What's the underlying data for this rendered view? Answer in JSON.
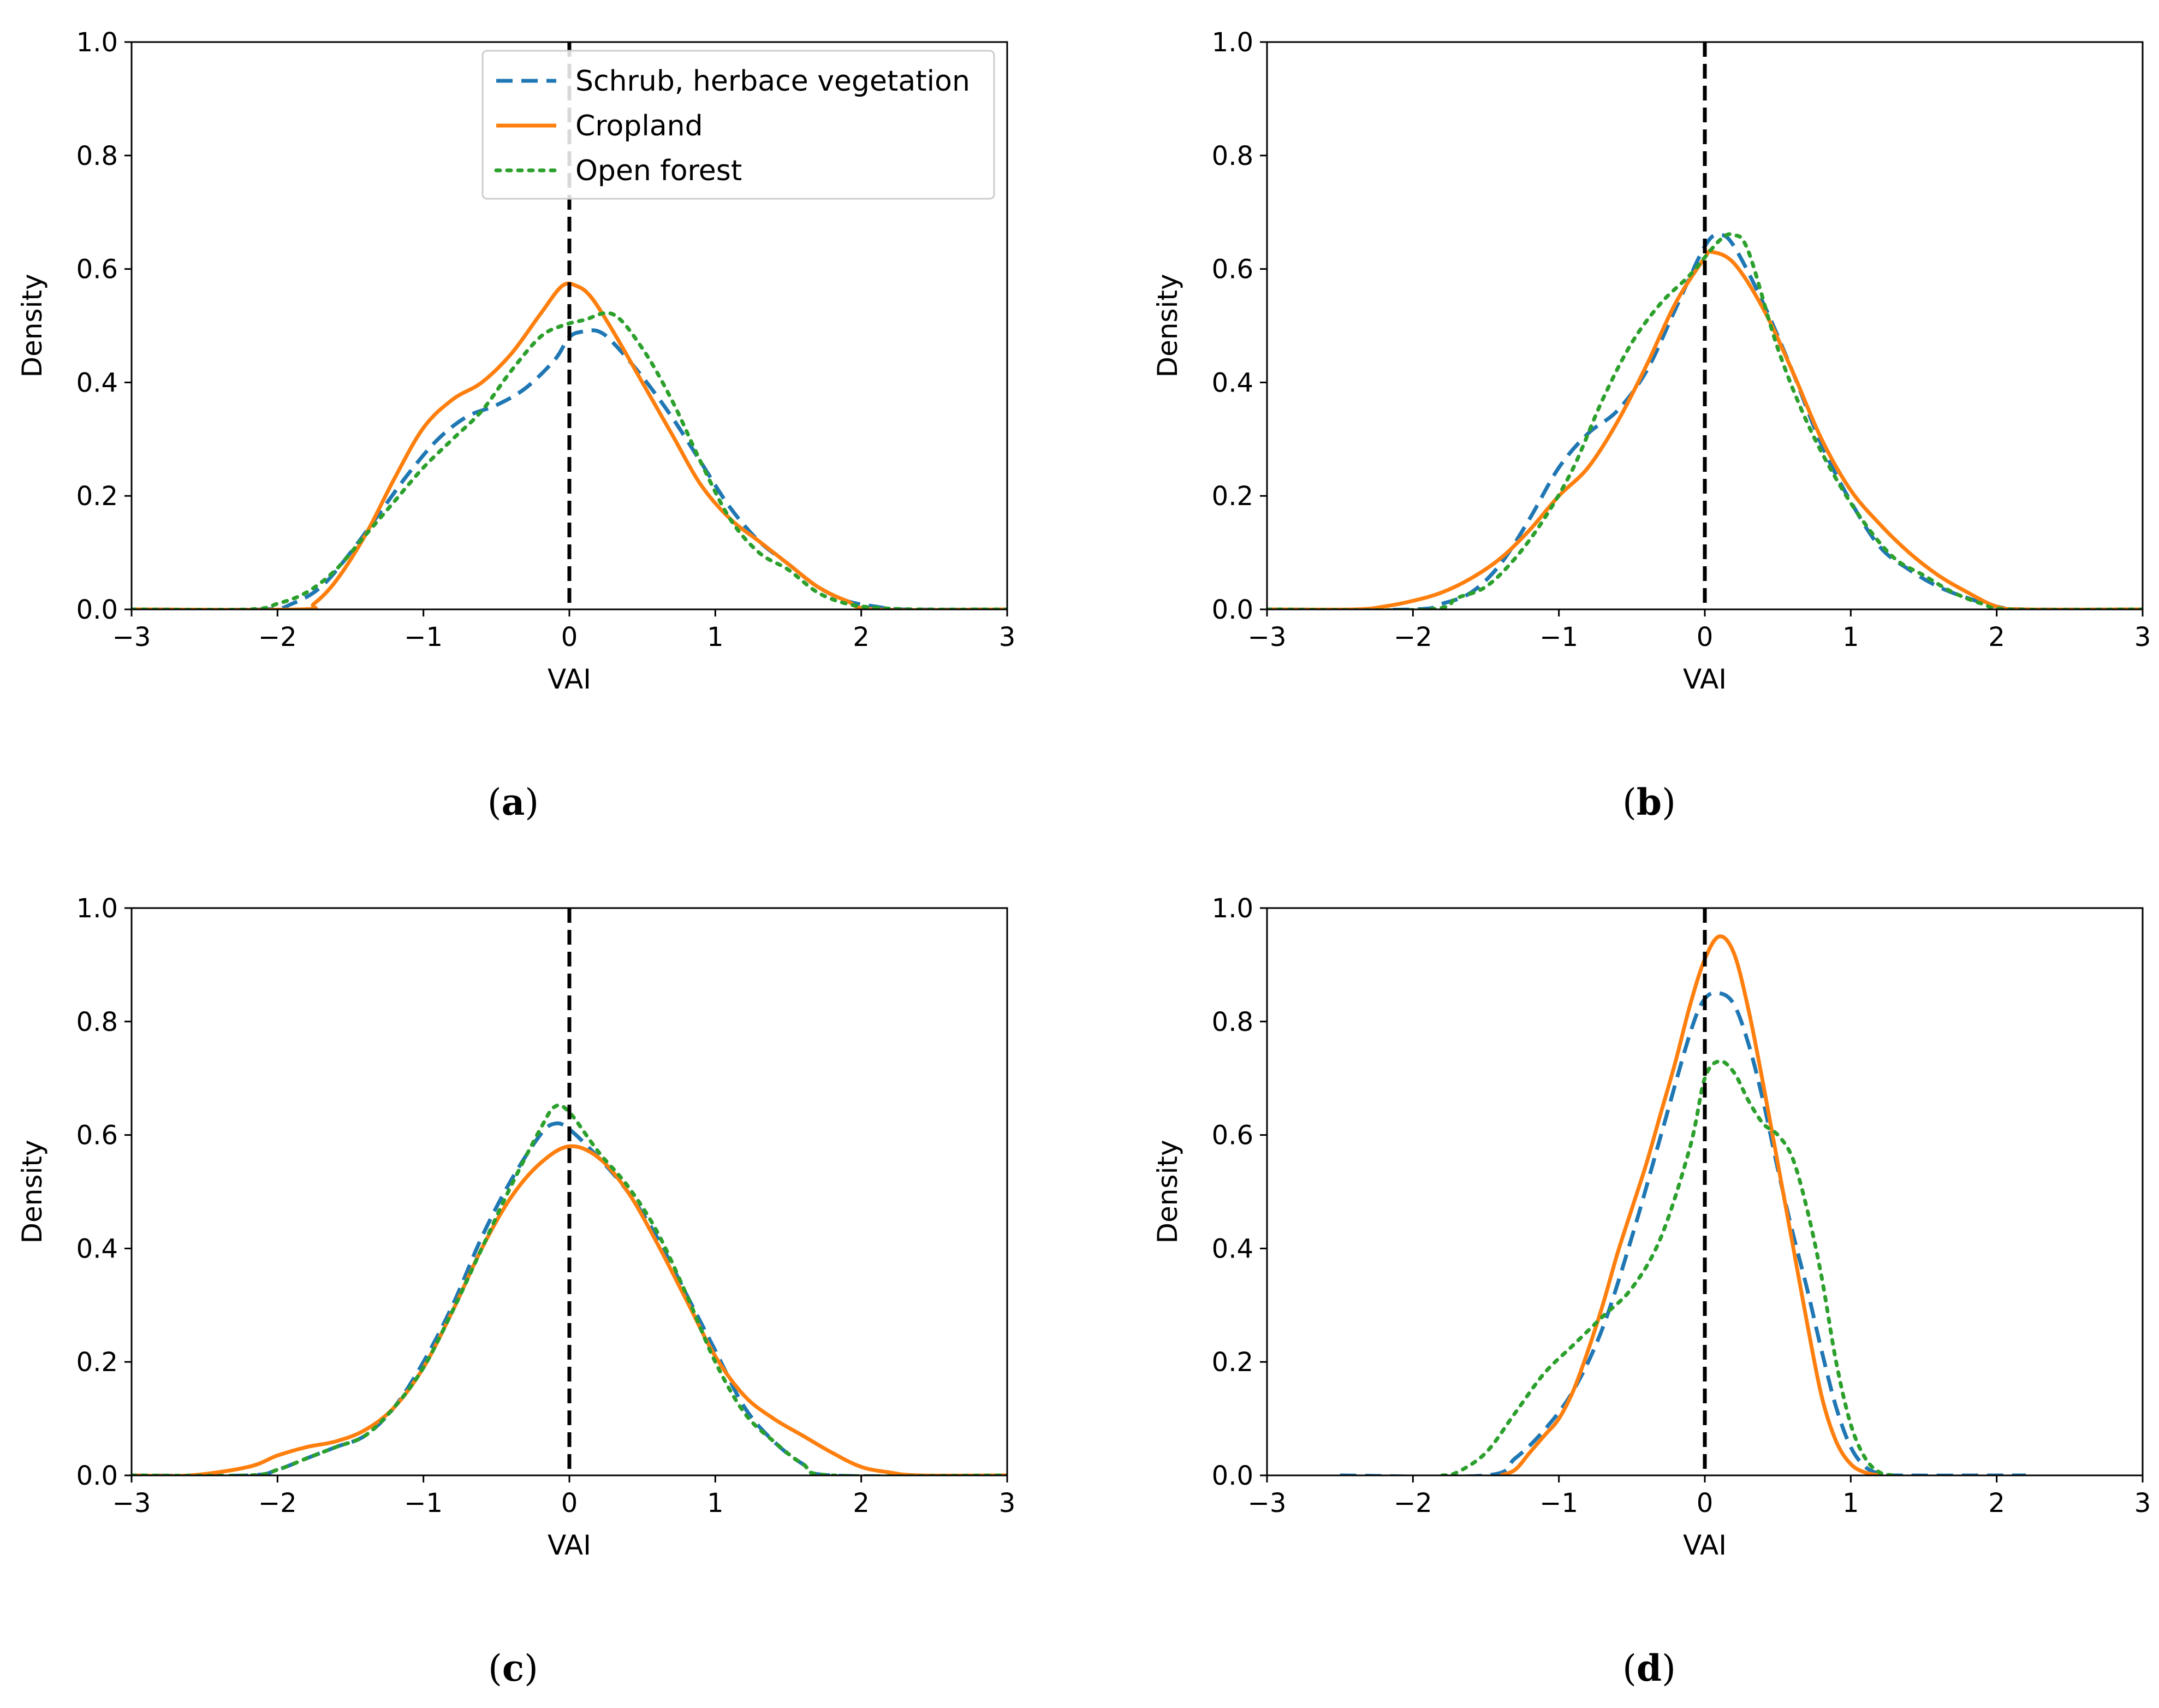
{
  "figure": {
    "captions": [
      "(a)",
      "(b)",
      "(c)",
      "(d)"
    ],
    "caption_letters": [
      "a",
      "b",
      "c",
      "d"
    ]
  },
  "legend": {
    "position": "top-right",
    "entries": [
      {
        "label": "Schrub, herbace vegetation",
        "color": "#1f77b4",
        "dash": "dashed"
      },
      {
        "label": "Cropland",
        "color": "#ff7f0e",
        "dash": "solid"
      },
      {
        "label": "Open forest",
        "color": "#2ca02c",
        "dash": "dotted"
      }
    ]
  },
  "chart_data": [
    {
      "id": "a",
      "type": "line",
      "title": "",
      "xlabel": "VAI",
      "ylabel": "Density",
      "xlim": [
        -3,
        3
      ],
      "ylim": [
        0,
        1
      ],
      "xticks": [
        -3,
        -2,
        -1,
        0,
        1,
        2,
        3
      ],
      "xtick_labels": [
        "−3",
        "−2",
        "−1",
        "0",
        "1",
        "2",
        "3"
      ],
      "yticks": [
        0,
        0.2,
        0.4,
        0.6,
        0.8,
        1
      ],
      "ytick_labels": [
        "0.0",
        "0.2",
        "0.4",
        "0.6",
        "0.8",
        "1.0"
      ],
      "vline_x": 0,
      "has_legend": true,
      "grid": false,
      "series": [
        {
          "name": "Schrub, herbace vegetation",
          "x": [
            -3,
            -2.1,
            -1.9,
            -1.7,
            -1.5,
            -1.3,
            -1.1,
            -0.9,
            -0.7,
            -0.5,
            -0.3,
            -0.1,
            0,
            0.1,
            0.2,
            0.3,
            0.5,
            0.7,
            0.9,
            1.1,
            1.3,
            1.5,
            1.7,
            1.9,
            2.1,
            2.3,
            3
          ],
          "y": [
            0,
            0,
            0.01,
            0.04,
            0.1,
            0.17,
            0.24,
            0.3,
            0.34,
            0.36,
            0.39,
            0.44,
            0.48,
            0.49,
            0.49,
            0.47,
            0.41,
            0.34,
            0.26,
            0.18,
            0.12,
            0.08,
            0.04,
            0.015,
            0.005,
            0,
            0
          ]
        },
        {
          "name": "Cropland",
          "x": [
            -3,
            -1.85,
            -1.75,
            -1.6,
            -1.4,
            -1.2,
            -1.0,
            -0.8,
            -0.6,
            -0.4,
            -0.2,
            -0.05,
            0.05,
            0.15,
            0.3,
            0.5,
            0.7,
            0.9,
            1.1,
            1.3,
            1.5,
            1.7,
            1.9,
            2.1,
            3
          ],
          "y": [
            0,
            0,
            0.01,
            0.05,
            0.13,
            0.23,
            0.32,
            0.37,
            0.4,
            0.45,
            0.52,
            0.57,
            0.57,
            0.55,
            0.49,
            0.4,
            0.31,
            0.22,
            0.16,
            0.12,
            0.08,
            0.04,
            0.015,
            0,
            0
          ]
        },
        {
          "name": "Open forest",
          "x": [
            -3,
            -2.2,
            -2.0,
            -1.8,
            -1.6,
            -1.4,
            -1.2,
            -1.0,
            -0.8,
            -0.6,
            -0.4,
            -0.2,
            -0.05,
            0.1,
            0.3,
            0.5,
            0.7,
            0.9,
            1.1,
            1.3,
            1.5,
            1.7,
            1.9,
            2.1,
            2.4,
            3
          ],
          "y": [
            0,
            0,
            0.01,
            0.03,
            0.07,
            0.13,
            0.19,
            0.25,
            0.3,
            0.35,
            0.42,
            0.48,
            0.5,
            0.51,
            0.52,
            0.46,
            0.37,
            0.26,
            0.16,
            0.1,
            0.07,
            0.03,
            0.01,
            0.003,
            0,
            0
          ]
        }
      ]
    },
    {
      "id": "b",
      "type": "line",
      "title": "",
      "xlabel": "VAI",
      "ylabel": "Density",
      "xlim": [
        -3,
        3
      ],
      "ylim": [
        0,
        1
      ],
      "xticks": [
        -3,
        -2,
        -1,
        0,
        1,
        2,
        3
      ],
      "xtick_labels": [
        "−3",
        "−2",
        "−1",
        "0",
        "1",
        "2",
        "3"
      ],
      "yticks": [
        0,
        0.2,
        0.4,
        0.6,
        0.8,
        1
      ],
      "ytick_labels": [
        "0.0",
        "0.2",
        "0.4",
        "0.6",
        "0.8",
        "1.0"
      ],
      "vline_x": 0,
      "has_legend": false,
      "grid": false,
      "series": [
        {
          "name": "Schrub, herbace vegetation",
          "x": [
            -3,
            -2.0,
            -1.8,
            -1.6,
            -1.4,
            -1.2,
            -1.0,
            -0.8,
            -0.6,
            -0.4,
            -0.2,
            0,
            0.1,
            0.2,
            0.4,
            0.6,
            0.8,
            1.0,
            1.2,
            1.4,
            1.6,
            1.8,
            2.0,
            2.2,
            3
          ],
          "y": [
            0,
            0,
            0.01,
            0.03,
            0.08,
            0.16,
            0.25,
            0.31,
            0.35,
            0.42,
            0.53,
            0.64,
            0.66,
            0.64,
            0.54,
            0.42,
            0.29,
            0.19,
            0.11,
            0.07,
            0.04,
            0.02,
            0.005,
            0,
            0
          ]
        },
        {
          "name": "Cropland",
          "x": [
            -3,
            -2.4,
            -2.2,
            -2.0,
            -1.8,
            -1.6,
            -1.4,
            -1.2,
            -1.0,
            -0.8,
            -0.6,
            -0.4,
            -0.2,
            0,
            0.05,
            0.2,
            0.4,
            0.6,
            0.8,
            1.0,
            1.2,
            1.4,
            1.6,
            1.8,
            2.0,
            2.2,
            3
          ],
          "y": [
            0,
            0,
            0.005,
            0.015,
            0.03,
            0.055,
            0.09,
            0.14,
            0.2,
            0.25,
            0.33,
            0.43,
            0.54,
            0.62,
            0.63,
            0.61,
            0.53,
            0.42,
            0.3,
            0.21,
            0.15,
            0.1,
            0.06,
            0.03,
            0.005,
            0,
            0
          ]
        },
        {
          "name": "Open forest",
          "x": [
            -3,
            -1.9,
            -1.7,
            -1.5,
            -1.3,
            -1.1,
            -0.9,
            -0.7,
            -0.5,
            -0.3,
            -0.1,
            0.1,
            0.2,
            0.3,
            0.5,
            0.7,
            0.9,
            1.1,
            1.3,
            1.5,
            1.7,
            1.9,
            2.1,
            3
          ],
          "y": [
            0,
            0,
            0.02,
            0.04,
            0.09,
            0.16,
            0.25,
            0.37,
            0.47,
            0.54,
            0.59,
            0.65,
            0.66,
            0.63,
            0.46,
            0.33,
            0.23,
            0.15,
            0.09,
            0.06,
            0.03,
            0.01,
            0,
            0
          ]
        }
      ]
    },
    {
      "id": "c",
      "type": "line",
      "title": "",
      "xlabel": "VAI",
      "ylabel": "Density",
      "xlim": [
        -3,
        3
      ],
      "ylim": [
        0,
        1
      ],
      "xticks": [
        -3,
        -2,
        -1,
        0,
        1,
        2,
        3
      ],
      "xtick_labels": [
        "−3",
        "−2",
        "−1",
        "0",
        "1",
        "2",
        "3"
      ],
      "yticks": [
        0,
        0.2,
        0.4,
        0.6,
        0.8,
        1
      ],
      "ytick_labels": [
        "0.0",
        "0.2",
        "0.4",
        "0.6",
        "0.8",
        "1.0"
      ],
      "vline_x": 0,
      "has_legend": false,
      "grid": false,
      "series": [
        {
          "name": "Schrub, herbace vegetation",
          "x": [
            -3,
            -2.2,
            -2.0,
            -1.8,
            -1.6,
            -1.4,
            -1.2,
            -1.0,
            -0.8,
            -0.6,
            -0.4,
            -0.2,
            -0.1,
            0,
            0.2,
            0.4,
            0.6,
            0.8,
            1.0,
            1.2,
            1.4,
            1.6,
            1.8,
            3
          ],
          "y": [
            0,
            0,
            0.01,
            0.03,
            0.05,
            0.07,
            0.12,
            0.2,
            0.3,
            0.42,
            0.52,
            0.6,
            0.62,
            0.61,
            0.56,
            0.5,
            0.42,
            0.32,
            0.22,
            0.12,
            0.06,
            0.02,
            0,
            0
          ]
        },
        {
          "name": "Cropland",
          "x": [
            -3,
            -2.6,
            -2.2,
            -2.0,
            -1.8,
            -1.6,
            -1.4,
            -1.2,
            -1.0,
            -0.8,
            -0.6,
            -0.4,
            -0.2,
            0,
            0.2,
            0.4,
            0.6,
            0.8,
            1.0,
            1.2,
            1.4,
            1.6,
            1.8,
            2.0,
            2.2,
            2.4,
            3
          ],
          "y": [
            0,
            0,
            0.015,
            0.035,
            0.05,
            0.06,
            0.08,
            0.12,
            0.19,
            0.29,
            0.4,
            0.49,
            0.55,
            0.58,
            0.56,
            0.5,
            0.41,
            0.31,
            0.21,
            0.14,
            0.1,
            0.07,
            0.04,
            0.015,
            0.005,
            0,
            0
          ]
        },
        {
          "name": "Open forest",
          "x": [
            -3,
            -2.2,
            -2.0,
            -1.8,
            -1.6,
            -1.4,
            -1.2,
            -1.0,
            -0.8,
            -0.6,
            -0.4,
            -0.2,
            -0.1,
            0,
            0.2,
            0.4,
            0.6,
            0.8,
            1.0,
            1.2,
            1.4,
            1.6,
            1.8,
            3
          ],
          "y": [
            0,
            0,
            0.01,
            0.03,
            0.05,
            0.07,
            0.12,
            0.19,
            0.29,
            0.4,
            0.51,
            0.61,
            0.65,
            0.64,
            0.57,
            0.51,
            0.43,
            0.32,
            0.2,
            0.11,
            0.06,
            0.02,
            0,
            0
          ]
        }
      ]
    },
    {
      "id": "d",
      "type": "line",
      "title": "",
      "xlabel": "VAI",
      "ylabel": "Density",
      "xlim": [
        -3,
        3
      ],
      "ylim": [
        0,
        1
      ],
      "xticks": [
        -3,
        -2,
        -1,
        0,
        1,
        2,
        3
      ],
      "xtick_labels": [
        "−3",
        "−2",
        "−1",
        "0",
        "1",
        "2",
        "3"
      ],
      "yticks": [
        0,
        0.2,
        0.4,
        0.6,
        0.8,
        1
      ],
      "ytick_labels": [
        "0.0",
        "0.2",
        "0.4",
        "0.6",
        "0.8",
        "1.0"
      ],
      "vline_x": 0,
      "has_legend": false,
      "grid": false,
      "series": [
        {
          "name": "Schrub, herbace vegetation",
          "x": [
            -2.5,
            -1.5,
            -1.3,
            -1.1,
            -0.9,
            -0.7,
            -0.5,
            -0.3,
            -0.1,
            0,
            0.1,
            0.2,
            0.3,
            0.4,
            0.5,
            0.6,
            0.7,
            0.8,
            0.9,
            1.0,
            1.1,
            1.2,
            1.3,
            2.2
          ],
          "y": [
            0,
            0,
            0.03,
            0.08,
            0.15,
            0.26,
            0.42,
            0.6,
            0.78,
            0.84,
            0.85,
            0.83,
            0.76,
            0.66,
            0.54,
            0.43,
            0.33,
            0.22,
            0.12,
            0.05,
            0.015,
            0.003,
            0,
            0
          ]
        },
        {
          "name": "Cropland",
          "x": [
            -1.4,
            -1.3,
            -1.2,
            -1.1,
            -1.0,
            -0.9,
            -0.8,
            -0.7,
            -0.6,
            -0.5,
            -0.4,
            -0.3,
            -0.2,
            -0.1,
            0,
            0.1,
            0.2,
            0.3,
            0.4,
            0.5,
            0.6,
            0.7,
            0.8,
            0.9,
            1.0,
            1.1,
            1.2
          ],
          "y": [
            0,
            0.01,
            0.04,
            0.07,
            0.1,
            0.15,
            0.22,
            0.3,
            0.39,
            0.47,
            0.55,
            0.64,
            0.73,
            0.83,
            0.91,
            0.95,
            0.92,
            0.82,
            0.69,
            0.55,
            0.41,
            0.27,
            0.14,
            0.06,
            0.02,
            0.005,
            0
          ]
        },
        {
          "name": "Open forest",
          "x": [
            -1.8,
            -1.7,
            -1.5,
            -1.3,
            -1.1,
            -0.9,
            -0.7,
            -0.5,
            -0.3,
            -0.1,
            0,
            0.1,
            0.2,
            0.3,
            0.4,
            0.5,
            0.6,
            0.7,
            0.8,
            0.9,
            1.0,
            1.1,
            1.2,
            1.3
          ],
          "y": [
            0,
            0.005,
            0.04,
            0.11,
            0.18,
            0.23,
            0.28,
            0.33,
            0.42,
            0.58,
            0.7,
            0.73,
            0.71,
            0.66,
            0.62,
            0.6,
            0.56,
            0.47,
            0.35,
            0.2,
            0.09,
            0.03,
            0.005,
            0
          ]
        }
      ]
    }
  ]
}
